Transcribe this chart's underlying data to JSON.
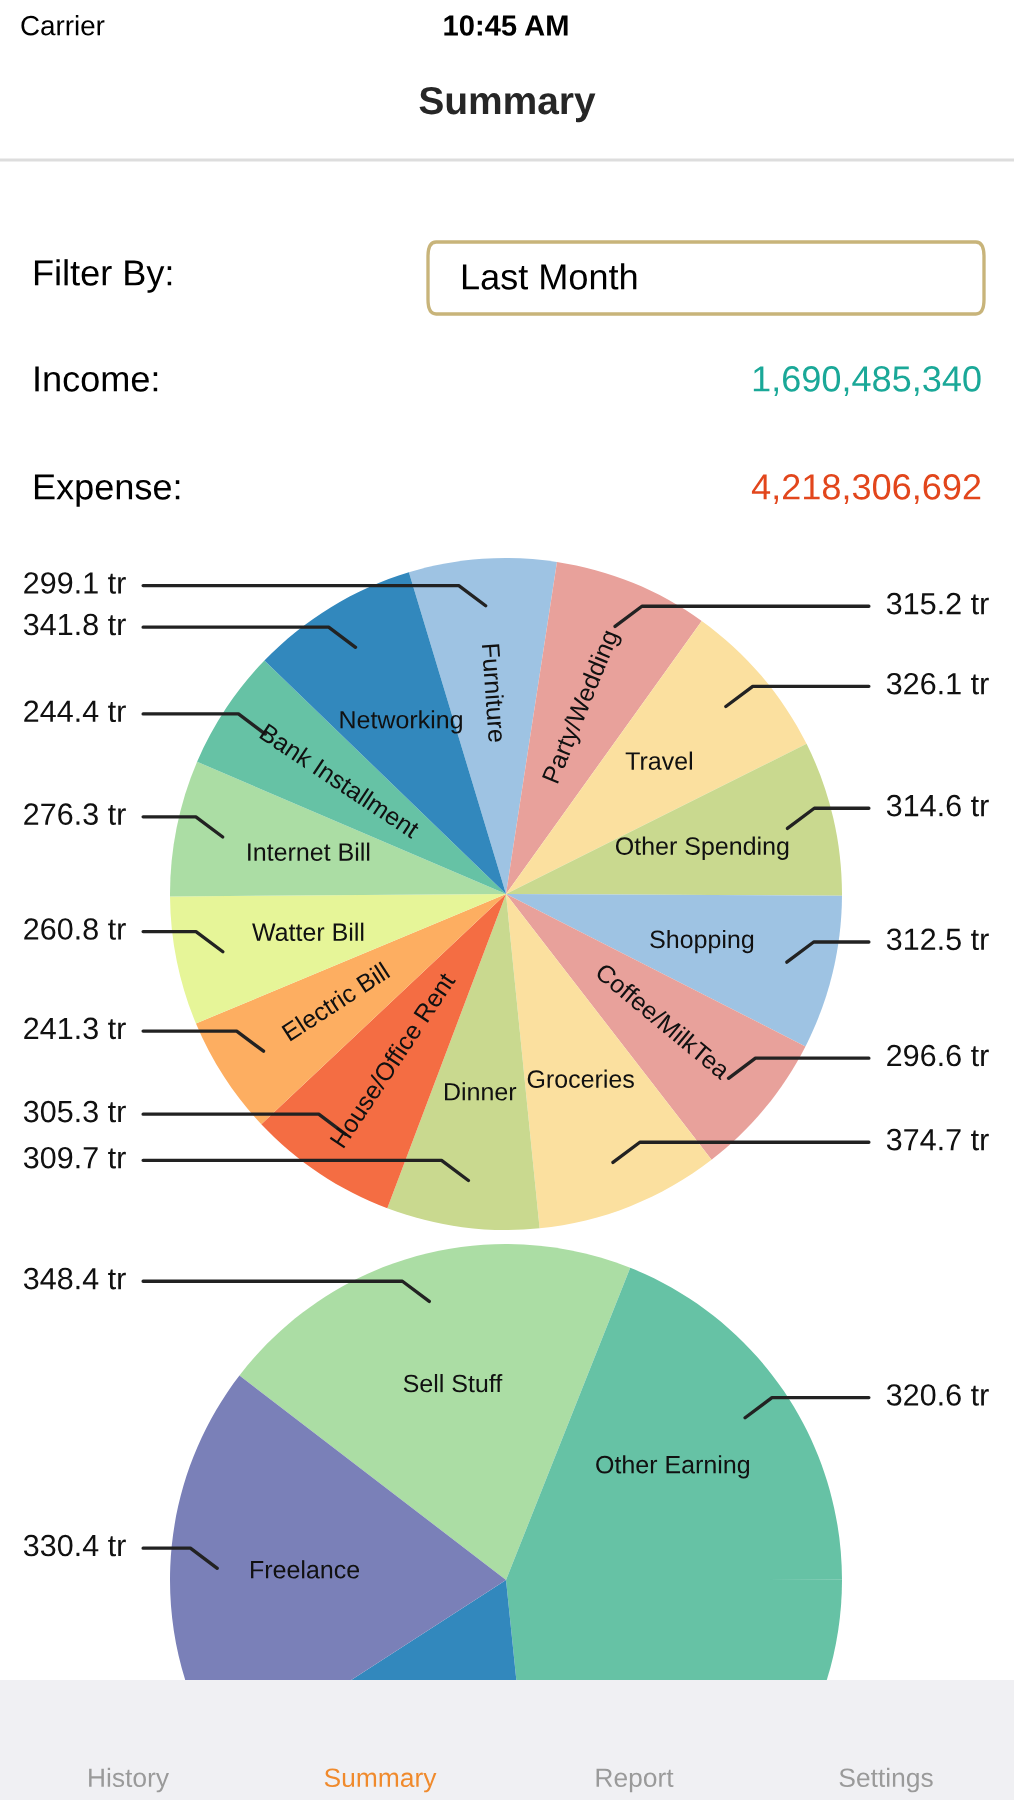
{
  "chart_data": [
    {
      "type": "pie",
      "title": "Summary",
      "categories": [
        "Furniture",
        "Party/Wedding",
        "Travel",
        "Other Spending",
        "Shopping",
        "Coffee/MilkTea",
        "Groceries",
        "Dinner",
        "House/Office Rent",
        "Electric Bill",
        "Watter Bill",
        "Internet Bill",
        "Bank Installment",
        "Networking"
      ],
      "values": [
        299.1,
        315.2,
        326.1,
        314.6,
        312.5,
        296.6,
        374.7,
        309.7,
        305.3,
        241.3,
        260.8,
        276.3,
        244.4,
        341.8
      ],
      "value_labels": [
        "299.1 tr",
        "315.2 tr",
        "326.1 tr",
        "314.6 tr",
        "312.5 tr",
        "296.6 tr",
        "374.7 tr",
        "309.7 tr",
        "305.3 tr",
        "241.3 tr",
        "260.8 tr",
        "276.3 tr",
        "244.4 tr",
        "341.8 tr"
      ],
      "colors": [
        "#9ec3e3",
        "#e8a19b",
        "#fbe09f",
        "#c9d98f",
        "#9ec3e3",
        "#e8a19b",
        "#fbe09f",
        "#c9d98f",
        "#f46d43",
        "#fdae61",
        "#e6f598",
        "#abdda4",
        "#66c2a5",
        "#3288bd"
      ],
      "annotations": [
        "Carrier",
        "10:45 AM",
        "Filter By:",
        "Last Month",
        "Income:",
        "1,690,485,340",
        "Expense:",
        "4,218,306,692"
      ]
    },
    {
      "type": "pie",
      "categories": [
        "Sell Stuff",
        "Other Earning",
        null,
        null,
        "Freelance"
      ],
      "values": [
        348.4,
        320.6,
        395,
        296,
        330.4
      ],
      "value_labels": [
        "348.4 tr",
        "320.6 tr",
        null,
        null,
        "330.4 tr"
      ],
      "colors": [
        "#abdda4",
        "#66c2a5",
        "#66c2a5",
        "#3288bd",
        "#7a80b8"
      ],
      "annotations": [
        "History",
        "Summary",
        "Report",
        "Settings"
      ]
    }
  ]
}
